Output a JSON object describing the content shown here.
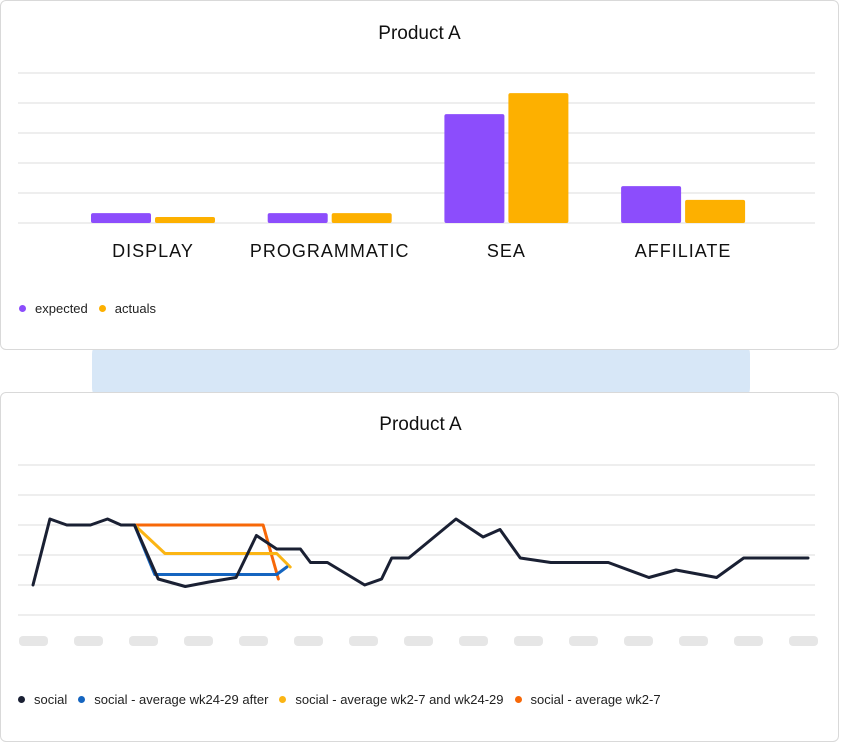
{
  "colors": {
    "expected": "#8c4dfc",
    "actuals": "#fdb000",
    "social": "#1a2033",
    "avg_after": "#1565c0",
    "avg_both": "#fbb514",
    "avg_wk2_7": "#f76808",
    "grid": "#dddddd",
    "placeholder": "#e6e6e6"
  },
  "chart_data": [
    {
      "type": "bar",
      "title": "Product A",
      "categories": [
        "DISPLAY",
        "PROGRAMMATIC",
        "SEA",
        "AFFILIATE"
      ],
      "ylim": [
        0,
        5
      ],
      "grid": true,
      "legend_position": "bottom-left",
      "series": [
        {
          "name": "expected",
          "color": "#8c4dfc",
          "values": [
            0.33,
            0.33,
            3.63,
            1.23
          ]
        },
        {
          "name": "actuals",
          "color": "#fdb000",
          "values": [
            0.2,
            0.33,
            4.33,
            0.77
          ]
        }
      ]
    },
    {
      "type": "line",
      "title": "Product A",
      "ylim": [
        0,
        5
      ],
      "grid": true,
      "x_tick_labels_visible": false,
      "legend_position": "bottom-left",
      "series": [
        {
          "name": "social",
          "color": "#1a2033",
          "x": [
            0,
            0.5,
            1,
            1.7,
            2.2,
            2.6,
            3,
            3.7,
            4.5,
            5.2,
            6,
            6.6,
            7.2,
            7.9,
            8.2,
            8.7,
            9.8,
            10.3,
            10.6,
            11.1,
            12.5,
            13.3,
            13.8,
            14.4,
            15.3,
            15.9,
            16.6,
            17,
            18.2,
            19,
            20.2,
            21,
            21.4,
            22.2,
            22.9
          ],
          "y": [
            1,
            3.2,
            3,
            3,
            3.2,
            3,
            3,
            1.2,
            0.95,
            1.1,
            1.25,
            2.65,
            2.2,
            2.2,
            1.75,
            1.75,
            1,
            1.2,
            1.9,
            1.9,
            3.2,
            2.6,
            2.85,
            1.9,
            1.75,
            1.75,
            1.75,
            1.75,
            1.25,
            1.5,
            1.25,
            1.9,
            1.9,
            1.9,
            1.9
          ]
        },
        {
          "name": "social - average wk24-29 after",
          "color": "#1565c0",
          "x": [
            3,
            3.6,
            7.2,
            7.5
          ],
          "y": [
            3,
            1.35,
            1.35,
            1.6
          ]
        },
        {
          "name": "social - average wk2-7 and wk24-29",
          "color": "#fbb514",
          "x": [
            3,
            3.9,
            7.2,
            7.6
          ],
          "y": [
            3,
            2.05,
            2.05,
            1.6
          ]
        },
        {
          "name": "social - average wk2-7",
          "color": "#f76808",
          "x": [
            3,
            6.8,
            7.25
          ],
          "y": [
            3,
            3,
            1.2
          ]
        }
      ]
    }
  ]
}
